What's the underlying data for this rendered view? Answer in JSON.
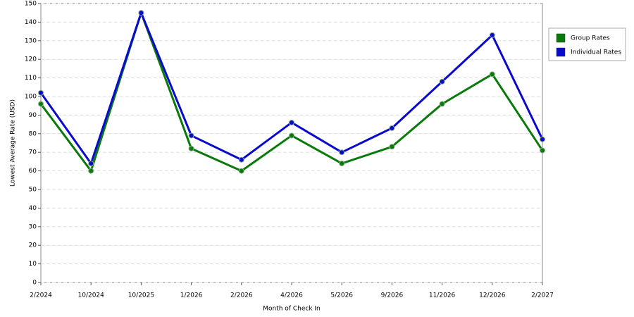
{
  "chart_data": {
    "type": "line",
    "x_label": "Month of Check In",
    "y_label": "Lowest Average Rate (USD)",
    "categories": [
      "2/2024",
      "10/2024",
      "10/2025",
      "1/2026",
      "2/2026",
      "4/2026",
      "5/2026",
      "9/2026",
      "11/2026",
      "12/2026",
      "2/2027"
    ],
    "series": [
      {
        "name": "Group Rates",
        "color": "#0a7a0a",
        "values": [
          96,
          60,
          145,
          72,
          60,
          79,
          64,
          73,
          96,
          112,
          71
        ]
      },
      {
        "name": "Individual Rates",
        "color": "#0a0acc",
        "values": [
          102,
          64,
          145,
          79,
          66,
          86,
          70,
          83,
          108,
          133,
          77
        ]
      }
    ],
    "ylim": [
      0,
      150
    ],
    "yticks": [
      0,
      10,
      20,
      30,
      40,
      50,
      60,
      70,
      80,
      90,
      100,
      110,
      120,
      130,
      140,
      150
    ],
    "grid": true,
    "legend": "right"
  }
}
